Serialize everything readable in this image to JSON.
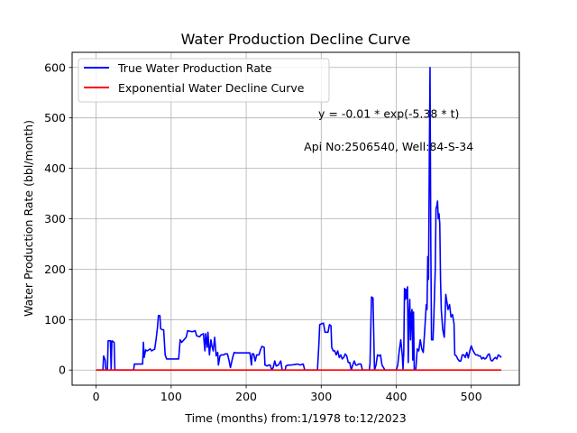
{
  "chart_data": {
    "type": "line",
    "title": "Water Production Decline Curve",
    "xlabel": "Time (months) from:1/1978 to:12/2023",
    "ylabel": "Water Production Rate (bbl/month)",
    "xlim": [
      -32,
      564
    ],
    "ylim": [
      -30,
      630
    ],
    "xticks": [
      0,
      100,
      200,
      300,
      400,
      500
    ],
    "yticks": [
      0,
      100,
      200,
      300,
      400,
      500,
      600
    ],
    "grid": true,
    "legend_position": "top-left",
    "annotations": [
      {
        "text": "y = -0.01 * exp(-5.38 * t)",
        "x": 390,
        "y": 500
      },
      {
        "text": "Api No:2506540, Well:84-S-34",
        "x": 390,
        "y": 435
      }
    ],
    "series": [
      {
        "name": "True Water Production Rate",
        "color": "#0000ff",
        "points": [
          [
            0,
            0
          ],
          [
            5,
            0
          ],
          [
            9,
            0
          ],
          [
            10,
            28
          ],
          [
            12,
            20
          ],
          [
            13,
            0
          ],
          [
            15,
            0
          ],
          [
            16,
            58
          ],
          [
            19,
            58
          ],
          [
            20,
            0
          ],
          [
            21,
            58
          ],
          [
            24,
            55
          ],
          [
            25,
            0
          ],
          [
            30,
            0
          ],
          [
            50,
            0
          ],
          [
            51,
            12
          ],
          [
            58,
            12
          ],
          [
            62,
            12
          ],
          [
            63,
            55
          ],
          [
            64,
            25
          ],
          [
            66,
            40
          ],
          [
            68,
            38
          ],
          [
            70,
            40
          ],
          [
            72,
            42
          ],
          [
            74,
            38
          ],
          [
            76,
            40
          ],
          [
            78,
            41
          ],
          [
            80,
            62
          ],
          [
            82,
            88
          ],
          [
            83,
            108
          ],
          [
            85,
            108
          ],
          [
            86,
            82
          ],
          [
            88,
            80
          ],
          [
            90,
            80
          ],
          [
            92,
            30
          ],
          [
            94,
            22
          ],
          [
            100,
            22
          ],
          [
            110,
            22
          ],
          [
            112,
            60
          ],
          [
            114,
            55
          ],
          [
            117,
            60
          ],
          [
            120,
            65
          ],
          [
            122,
            78
          ],
          [
            128,
            76
          ],
          [
            132,
            78
          ],
          [
            134,
            68
          ],
          [
            138,
            66
          ],
          [
            140,
            70
          ],
          [
            143,
            72
          ],
          [
            145,
            38
          ],
          [
            146,
            72
          ],
          [
            148,
            45
          ],
          [
            149,
            75
          ],
          [
            151,
            30
          ],
          [
            153,
            60
          ],
          [
            154,
            50
          ],
          [
            156,
            38
          ],
          [
            158,
            65
          ],
          [
            160,
            28
          ],
          [
            162,
            35
          ],
          [
            163,
            10
          ],
          [
            165,
            28
          ],
          [
            167,
            30
          ],
          [
            170,
            30
          ],
          [
            172,
            32
          ],
          [
            175,
            32
          ],
          [
            177,
            20
          ],
          [
            179,
            5
          ],
          [
            182,
            25
          ],
          [
            184,
            35
          ],
          [
            186,
            34
          ],
          [
            190,
            34
          ],
          [
            195,
            34
          ],
          [
            200,
            34
          ],
          [
            205,
            34
          ],
          [
            207,
            10
          ],
          [
            208,
            32
          ],
          [
            210,
            32
          ],
          [
            212,
            18
          ],
          [
            214,
            30
          ],
          [
            217,
            30
          ],
          [
            219,
            40
          ],
          [
            221,
            47
          ],
          [
            224,
            45
          ],
          [
            225,
            10
          ],
          [
            228,
            8
          ],
          [
            230,
            10
          ],
          [
            232,
            10
          ],
          [
            234,
            0
          ],
          [
            236,
            5
          ],
          [
            238,
            18
          ],
          [
            240,
            8
          ],
          [
            243,
            10
          ],
          [
            246,
            18
          ],
          [
            248,
            0
          ],
          [
            252,
            0
          ],
          [
            253,
            8
          ],
          [
            256,
            10
          ],
          [
            260,
            10
          ],
          [
            265,
            11
          ],
          [
            268,
            12
          ],
          [
            272,
            10
          ],
          [
            276,
            12
          ],
          [
            278,
            0
          ],
          [
            280,
            0
          ],
          [
            295,
            0
          ],
          [
            297,
            55
          ],
          [
            298,
            90
          ],
          [
            301,
            92
          ],
          [
            303,
            93
          ],
          [
            305,
            75
          ],
          [
            307,
            75
          ],
          [
            309,
            75
          ],
          [
            311,
            90
          ],
          [
            313,
            88
          ],
          [
            314,
            45
          ],
          [
            316,
            38
          ],
          [
            318,
            38
          ],
          [
            320,
            30
          ],
          [
            322,
            38
          ],
          [
            324,
            25
          ],
          [
            326,
            30
          ],
          [
            328,
            22
          ],
          [
            330,
            25
          ],
          [
            332,
            32
          ],
          [
            334,
            28
          ],
          [
            336,
            15
          ],
          [
            338,
            15
          ],
          [
            340,
            0
          ],
          [
            342,
            10
          ],
          [
            344,
            18
          ],
          [
            346,
            10
          ],
          [
            348,
            10
          ],
          [
            350,
            12
          ],
          [
            353,
            12
          ],
          [
            355,
            0
          ],
          [
            360,
            0
          ],
          [
            364,
            0
          ],
          [
            365,
            12
          ],
          [
            367,
            145
          ],
          [
            369,
            143
          ],
          [
            371,
            0
          ],
          [
            373,
            10
          ],
          [
            375,
            30
          ],
          [
            377,
            28
          ],
          [
            379,
            30
          ],
          [
            381,
            10
          ],
          [
            383,
            5
          ],
          [
            385,
            0
          ],
          [
            395,
            0
          ],
          [
            400,
            0
          ],
          [
            402,
            10
          ],
          [
            404,
            38
          ],
          [
            406,
            60
          ],
          [
            408,
            30
          ],
          [
            409,
            2
          ],
          [
            410,
            35
          ],
          [
            411,
            162
          ],
          [
            412,
            140
          ],
          [
            413,
            160
          ],
          [
            414,
            142
          ],
          [
            415,
            165
          ],
          [
            416,
            15
          ],
          [
            417,
            110
          ],
          [
            418,
            140
          ],
          [
            419,
            60
          ],
          [
            420,
            110
          ],
          [
            421,
            120
          ],
          [
            422,
            20
          ],
          [
            423,
            115
          ],
          [
            424,
            0
          ],
          [
            426,
            0
          ],
          [
            428,
            42
          ],
          [
            430,
            38
          ],
          [
            432,
            60
          ],
          [
            434,
            42
          ],
          [
            436,
            35
          ],
          [
            438,
            80
          ],
          [
            440,
            130
          ],
          [
            441,
            120
          ],
          [
            442,
            225
          ],
          [
            443,
            180
          ],
          [
            444,
            400
          ],
          [
            445,
            600
          ],
          [
            446,
            260
          ],
          [
            447,
            60
          ],
          [
            449,
            60
          ],
          [
            450,
            100
          ],
          [
            452,
            200
          ],
          [
            453,
            320
          ],
          [
            454,
            325
          ],
          [
            455,
            335
          ],
          [
            456,
            300
          ],
          [
            457,
            310
          ],
          [
            458,
            290
          ],
          [
            459,
            180
          ],
          [
            460,
            120
          ],
          [
            462,
            80
          ],
          [
            464,
            65
          ],
          [
            465,
            100
          ],
          [
            466,
            150
          ],
          [
            467,
            140
          ],
          [
            469,
            120
          ],
          [
            471,
            130
          ],
          [
            473,
            105
          ],
          [
            475,
            110
          ],
          [
            477,
            92
          ],
          [
            478,
            30
          ],
          [
            480,
            28
          ],
          [
            482,
            22
          ],
          [
            484,
            18
          ],
          [
            486,
            18
          ],
          [
            488,
            30
          ],
          [
            490,
            30
          ],
          [
            492,
            25
          ],
          [
            494,
            35
          ],
          [
            496,
            24
          ],
          [
            498,
            38
          ],
          [
            500,
            48
          ],
          [
            502,
            40
          ],
          [
            504,
            34
          ],
          [
            506,
            30
          ],
          [
            508,
            30
          ],
          [
            510,
            28
          ],
          [
            512,
            28
          ],
          [
            514,
            22
          ],
          [
            516,
            25
          ],
          [
            518,
            22
          ],
          [
            520,
            24
          ],
          [
            522,
            30
          ],
          [
            524,
            32
          ],
          [
            526,
            20
          ],
          [
            528,
            18
          ],
          [
            530,
            22
          ],
          [
            532,
            25
          ],
          [
            534,
            22
          ],
          [
            536,
            30
          ],
          [
            538,
            28
          ],
          [
            540,
            25
          ]
        ]
      },
      {
        "name": "Exponential Water Decline Curve",
        "color": "#ff0000",
        "points": [
          [
            0,
            0
          ],
          [
            540,
            0
          ]
        ]
      }
    ]
  }
}
